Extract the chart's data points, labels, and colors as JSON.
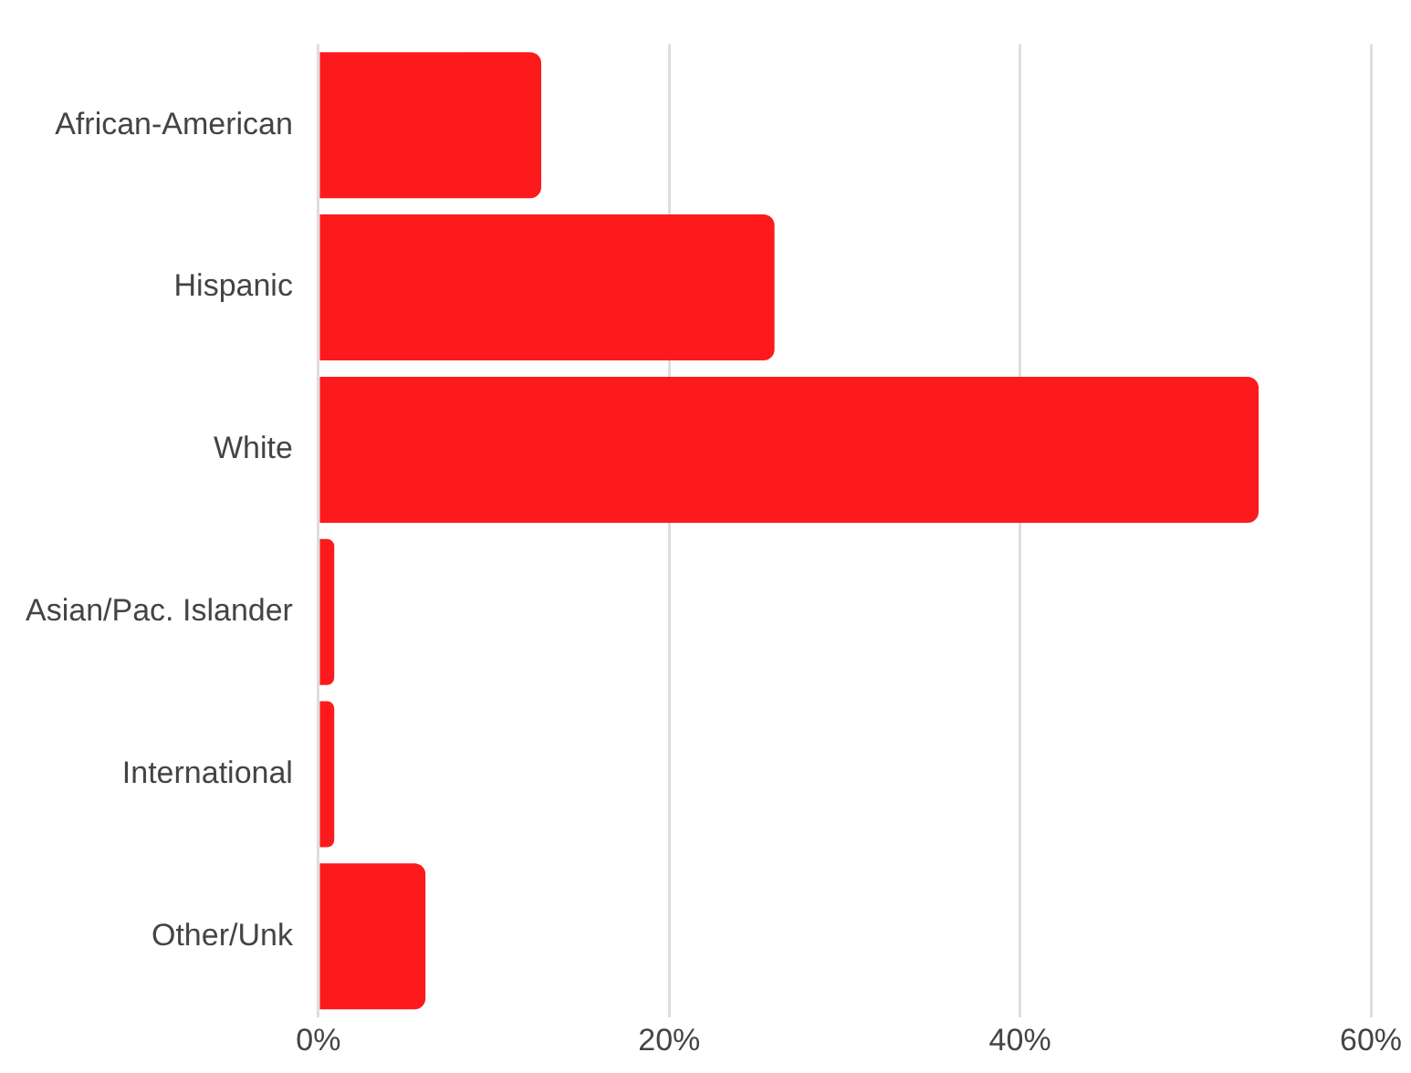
{
  "chart_data": {
    "type": "bar",
    "orientation": "horizontal",
    "categories": [
      "African-American",
      "Hispanic",
      "White",
      "Asian/Pac. Islander",
      "International",
      "Other/Unk"
    ],
    "values": [
      12.7,
      26.0,
      53.6,
      0.9,
      0.9,
      6.1
    ],
    "color": "#fc1a1c",
    "xlim": [
      0,
      60
    ],
    "xticks": [
      {
        "value": 0,
        "label": "0%"
      },
      {
        "value": 20,
        "label": "20%"
      },
      {
        "value": 40,
        "label": "40%"
      },
      {
        "value": 60,
        "label": "60%"
      }
    ],
    "grid": "x"
  }
}
